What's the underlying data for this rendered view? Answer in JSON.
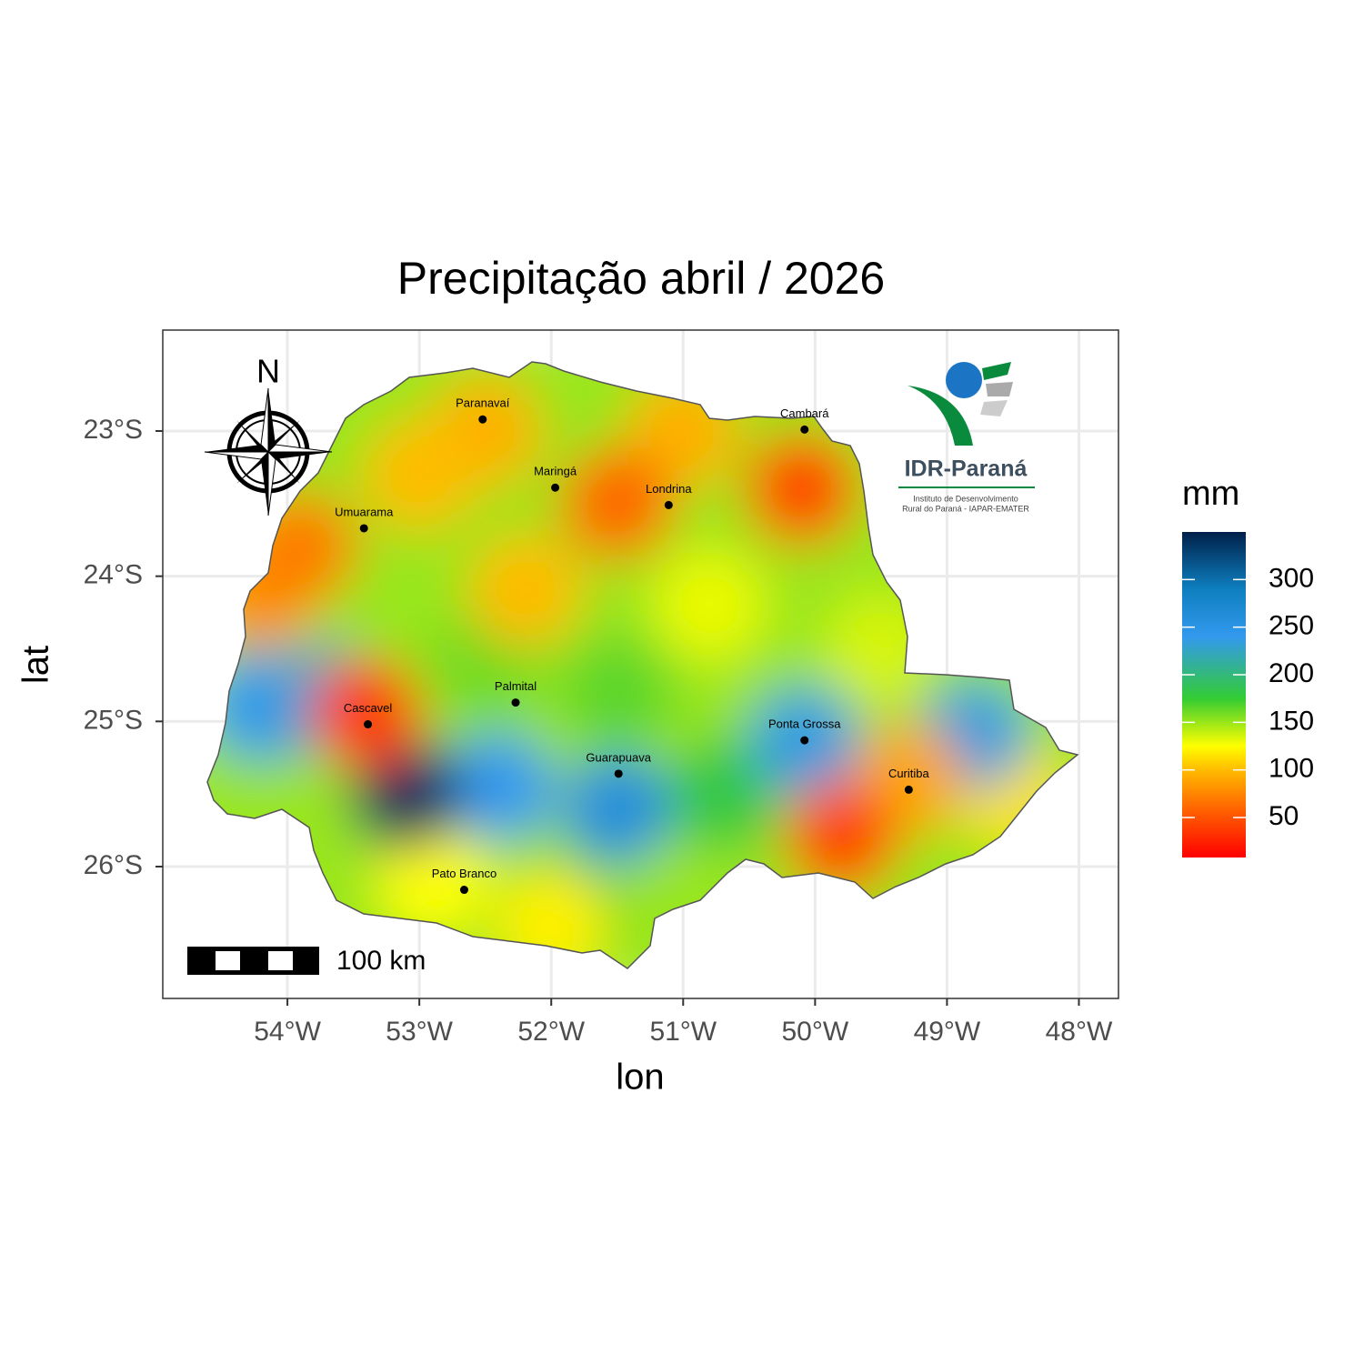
{
  "chart_data": {
    "type": "map",
    "title": "Precipitação abril / 2026",
    "x_label": "lon",
    "y_label": "lat",
    "xlim": [
      -54.945,
      -47.7
    ],
    "ylim": [
      -26.908,
      -22.305
    ],
    "xticks": [
      {
        "value": -54,
        "label": "54°W"
      },
      {
        "value": -53,
        "label": "53°W"
      },
      {
        "value": -52,
        "label": "52°W"
      },
      {
        "value": -51,
        "label": "51°W"
      },
      {
        "value": -50,
        "label": "50°W"
      },
      {
        "value": -49,
        "label": "49°W"
      },
      {
        "value": -48,
        "label": "48°W"
      }
    ],
    "yticks": [
      {
        "value": -23,
        "label": "23°S"
      },
      {
        "value": -24,
        "label": "24°S"
      },
      {
        "value": -25,
        "label": "25°S"
      },
      {
        "value": -26,
        "label": "26°S"
      }
    ],
    "grid": true,
    "legend": {
      "title": "mm",
      "lim": [
        8,
        350
      ],
      "ticks": [
        50,
        100,
        150,
        200,
        250,
        300
      ],
      "colorscale": [
        [
          8,
          "#ff0000"
        ],
        [
          60,
          "#ff6600"
        ],
        [
          100,
          "#ffbb00"
        ],
        [
          125,
          "#ffff00"
        ],
        [
          175,
          "#33cc33"
        ],
        [
          240,
          "#3399ee"
        ],
        [
          290,
          "#0e7fbf"
        ],
        [
          350,
          "#00204a"
        ]
      ]
    },
    "field_base": 150,
    "field": [
      {
        "lon": -51.5,
        "lat": -24.8,
        "value": 165
      },
      {
        "lon": -52.5,
        "lat": -24.6,
        "value": 160
      },
      {
        "lon": -49.5,
        "lat": -24.5,
        "value": 135
      },
      {
        "lon": -50.7,
        "lat": -25.5,
        "value": 180
      },
      {
        "lon": -51.9,
        "lat": -26.3,
        "value": 170
      },
      {
        "lon": -52.9,
        "lat": -26.1,
        "value": 125
      },
      {
        "lon": -52.0,
        "lat": -26.4,
        "value": 120
      },
      {
        "lon": -48.5,
        "lat": -25.5,
        "value": 115
      },
      {
        "lon": -50.8,
        "lat": -24.2,
        "value": 130
      },
      {
        "lon": -52.2,
        "lat": -24.1,
        "value": 100
      },
      {
        "lon": -52.5,
        "lat": -23.0,
        "value": 95
      },
      {
        "lon": -53.0,
        "lat": -23.3,
        "value": 100
      },
      {
        "lon": -51.0,
        "lat": -23.0,
        "value": 95
      },
      {
        "lon": -54.2,
        "lat": -24.1,
        "value": 80
      },
      {
        "lon": -53.9,
        "lat": -23.8,
        "value": 70
      },
      {
        "lon": -51.5,
        "lat": -23.5,
        "value": 60
      },
      {
        "lon": -50.1,
        "lat": -23.4,
        "value": 45
      },
      {
        "lon": -52.4,
        "lat": -25.45,
        "value": 240
      },
      {
        "lon": -51.5,
        "lat": -25.6,
        "value": 260
      },
      {
        "lon": -54.2,
        "lat": -24.9,
        "value": 240
      },
      {
        "lon": -53.7,
        "lat": -24.85,
        "value": 230
      },
      {
        "lon": -50.08,
        "lat": -25.13,
        "value": 235
      },
      {
        "lon": -48.8,
        "lat": -25.1,
        "value": 235
      },
      {
        "lon": -53.1,
        "lat": -25.5,
        "value": 340
      },
      {
        "lon": -49.3,
        "lat": -25.4,
        "value": 90
      },
      {
        "lon": -53.4,
        "lat": -24.95,
        "value": 40
      },
      {
        "lon": -49.8,
        "lat": -25.8,
        "value": 45
      }
    ],
    "cities": [
      {
        "name": "Paranavaí",
        "lon": -52.52,
        "lat": -22.92
      },
      {
        "name": "Cambará",
        "lon": -50.08,
        "lat": -22.99
      },
      {
        "name": "Maringá",
        "lon": -51.97,
        "lat": -23.39
      },
      {
        "name": "Londrina",
        "lon": -51.11,
        "lat": -23.51
      },
      {
        "name": "Umuarama",
        "lon": -53.42,
        "lat": -23.67
      },
      {
        "name": "Palmital",
        "lon": -52.27,
        "lat": -24.87
      },
      {
        "name": "Cascavel",
        "lon": -53.39,
        "lat": -25.02
      },
      {
        "name": "Ponta Grossa",
        "lon": -50.08,
        "lat": -25.13
      },
      {
        "name": "Guarapuava",
        "lon": -51.49,
        "lat": -25.36
      },
      {
        "name": "Curitiba",
        "lon": -49.29,
        "lat": -25.47
      },
      {
        "name": "Pato Branco",
        "lon": -52.66,
        "lat": -26.16
      }
    ],
    "north_label": "N",
    "scalebar_label": "100 km",
    "logo": {
      "title": "IDR-Paraná",
      "lines": [
        "Instituto de Desenvolvimento",
        "Rural do Paraná - IAPAR-EMATER"
      ]
    }
  }
}
